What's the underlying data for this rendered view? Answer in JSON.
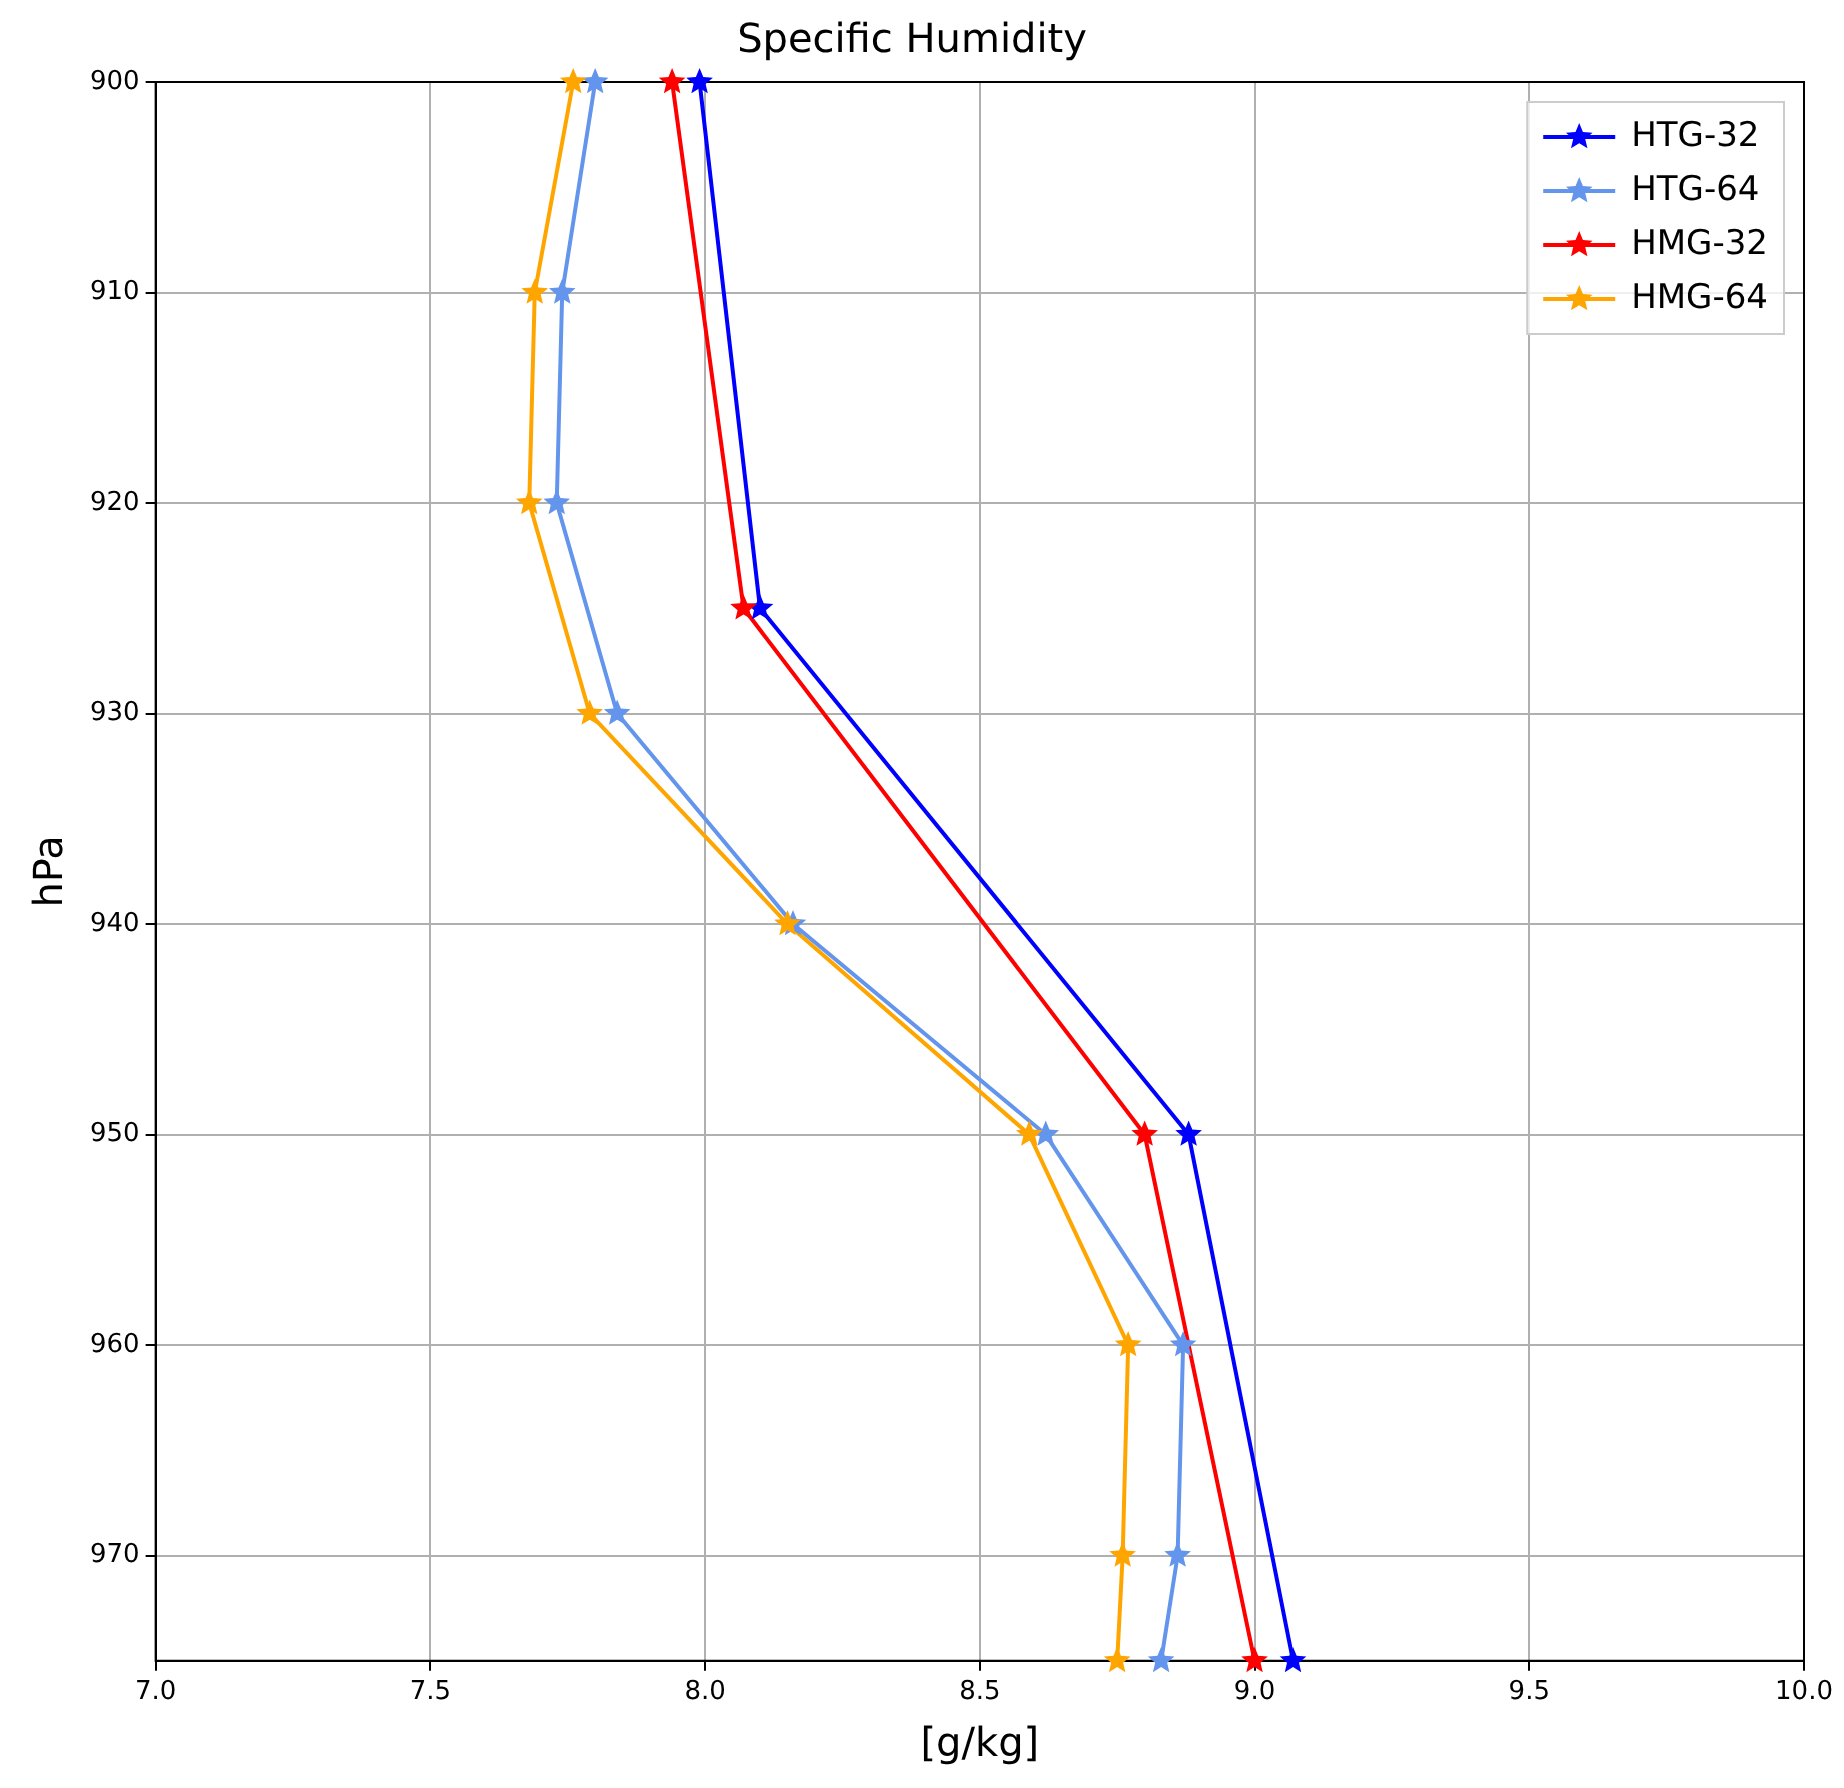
{
  "chart_data": {
    "type": "line",
    "title": "Specific Humidity",
    "xlabel": "[g/kg]",
    "ylabel": "hPa",
    "xlim": [
      7.0,
      10.0
    ],
    "xticks": [
      {
        "value": 7.0,
        "label": "7.0"
      },
      {
        "value": 7.5,
        "label": "7.5"
      },
      {
        "value": 8.0,
        "label": "8.0"
      },
      {
        "value": 8.5,
        "label": "8.5"
      },
      {
        "value": 9.0,
        "label": "9.0"
      },
      {
        "value": 9.5,
        "label": "9.5"
      },
      {
        "value": 10.0,
        "label": "10.0"
      }
    ],
    "ylim": [
      975,
      900
    ],
    "yticks": [
      900,
      910,
      920,
      930,
      940,
      950,
      960,
      970
    ],
    "grid": true,
    "legend": "top right",
    "marker": "star",
    "line_style": "solid",
    "series": [
      {
        "name": "HTG-32",
        "color": "#0000ff",
        "x": [
          7.99,
          8.1,
          8.88,
          9.07
        ],
        "values": [
          900,
          925,
          950,
          975
        ]
      },
      {
        "name": "HTG-64",
        "color": "#6495ed",
        "x": [
          7.8,
          7.74,
          7.73,
          7.84,
          8.16,
          8.62,
          8.87,
          8.86,
          8.83
        ],
        "values": [
          900,
          910,
          920,
          930,
          940,
          950,
          960,
          970,
          975
        ]
      },
      {
        "name": "HMG-32",
        "color": "#ff0000",
        "x": [
          7.94,
          8.07,
          8.8,
          9.0
        ],
        "values": [
          900,
          925,
          950,
          975
        ]
      },
      {
        "name": "HMG-64",
        "color": "#ffa500",
        "x": [
          7.76,
          7.69,
          7.68,
          7.79,
          8.15,
          8.59,
          8.77,
          8.76,
          8.75
        ],
        "values": [
          900,
          910,
          920,
          930,
          940,
          950,
          960,
          970,
          975
        ]
      }
    ]
  }
}
